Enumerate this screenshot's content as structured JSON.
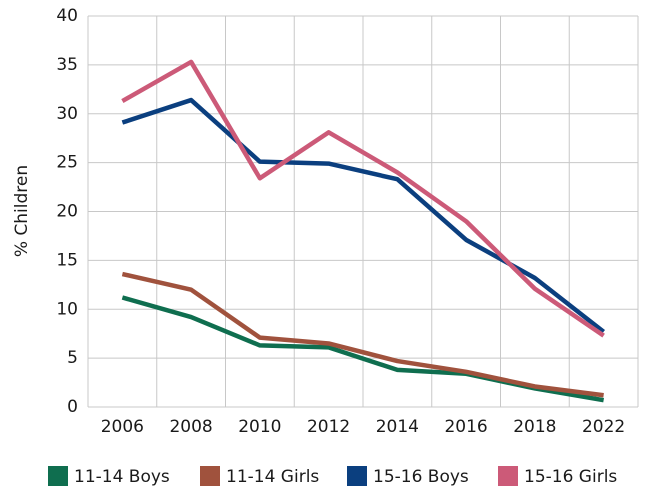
{
  "chart_data": {
    "type": "line",
    "y_label": "% Children",
    "categories": [
      "2006",
      "2008",
      "2010",
      "2012",
      "2014",
      "2016",
      "2018",
      "2022"
    ],
    "series": [
      {
        "name": "11-14 Boys",
        "color": "#0f6e4f",
        "values": [
          11.2,
          9.2,
          6.3,
          6.1,
          3.8,
          3.4,
          1.9,
          0.7
        ]
      },
      {
        "name": "11-14 Girls",
        "color": "#a0523d",
        "values": [
          13.6,
          12.0,
          7.1,
          6.5,
          4.7,
          3.6,
          2.1,
          1.2
        ]
      },
      {
        "name": "15-16 Boys",
        "color": "#0b3f7f",
        "values": [
          29.1,
          31.4,
          25.1,
          24.9,
          23.3,
          17.1,
          13.2,
          7.7
        ]
      },
      {
        "name": "15-16 Girls",
        "color": "#cc5a78",
        "values": [
          31.3,
          35.3,
          23.4,
          28.1,
          24.0,
          19.0,
          12.1,
          7.3
        ]
      }
    ],
    "ylim": [
      0,
      40
    ],
    "yticks": [
      0,
      5,
      10,
      15,
      20,
      25,
      30,
      35,
      40
    ],
    "grid": true,
    "legend": "bottom"
  }
}
